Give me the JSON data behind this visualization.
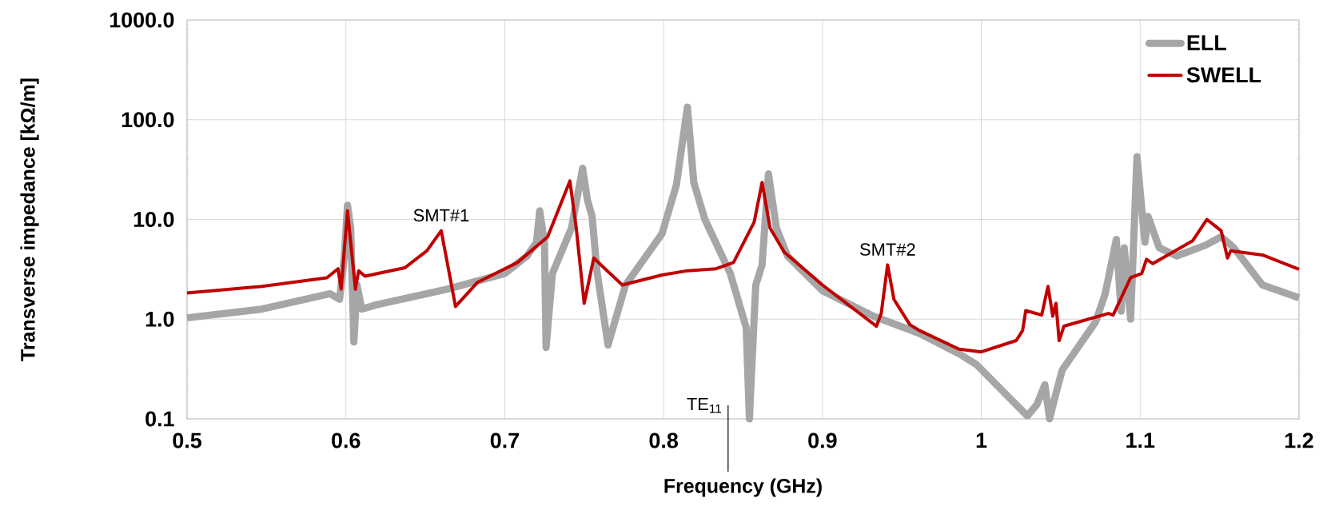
{
  "chart_data": {
    "type": "line",
    "xlabel": "Frequency (GHz)",
    "ylabel": "Transverse impedance [kΩ/m]",
    "log": "y",
    "grid": true,
    "legend": "top right",
    "marker": "none",
    "line_style": "solid",
    "xlim": [
      0.5,
      1.2
    ],
    "xticks": [
      0.5,
      0.6,
      0.7,
      0.8,
      0.9,
      1,
      1.1,
      1.2
    ],
    "ylim": [
      0.1,
      1000
    ],
    "yticks": [
      {
        "value": 0.1,
        "label": "0.1"
      },
      {
        "value": 1,
        "label": "1.0"
      },
      {
        "value": 10,
        "label": "10.0"
      },
      {
        "value": 100,
        "label": "100.0"
      },
      {
        "value": 1000,
        "label": "1000.0"
      }
    ],
    "series": [
      {
        "name": "ELL",
        "color": "#a6a6a6",
        "x": [
          0.5,
          0.547,
          0.59,
          0.596,
          0.599,
          0.601,
          0.603,
          0.605,
          0.607,
          0.61,
          0.619,
          0.664,
          0.7,
          0.714,
          0.72,
          0.722,
          0.725,
          0.726,
          0.73,
          0.742,
          0.749,
          0.752,
          0.755,
          0.758,
          0.765,
          0.776,
          0.799,
          0.808,
          0.815,
          0.819,
          0.826,
          0.842,
          0.852,
          0.854,
          0.858,
          0.862,
          0.866,
          0.871,
          0.878,
          0.9,
          0.932,
          0.961,
          0.986,
          0.997,
          1.029,
          1.035,
          1.04,
          1.043,
          1.047,
          1.051,
          1.072,
          1.078,
          1.085,
          1.088,
          1.09,
          1.094,
          1.098,
          1.103,
          1.105,
          1.112,
          1.123,
          1.141,
          1.151,
          1.159,
          1.177,
          1.2
        ],
        "values": [
          1.03,
          1.26,
          1.8,
          1.58,
          4.2,
          13.9,
          8.2,
          0.59,
          2.2,
          1.26,
          1.39,
          2.0,
          2.87,
          4.3,
          5.9,
          12.2,
          5.9,
          0.52,
          2.87,
          8.2,
          32.6,
          15.8,
          10.7,
          3.06,
          0.55,
          2.2,
          7.2,
          22,
          134,
          23.5,
          10,
          2.87,
          0.82,
          0.1,
          2.2,
          3.5,
          28.6,
          8.2,
          4.3,
          1.93,
          1.07,
          0.72,
          0.45,
          0.35,
          0.107,
          0.139,
          0.22,
          0.1,
          0.18,
          0.31,
          0.94,
          1.8,
          6.3,
          1.2,
          5.2,
          1.0,
          42.5,
          5.9,
          10.7,
          5.2,
          4.3,
          5.5,
          6.7,
          5.2,
          2.2,
          1.64
        ]
      },
      {
        "name": "SWELL",
        "color": "#c00000",
        "x": [
          0.5,
          0.547,
          0.588,
          0.595,
          0.597,
          0.601,
          0.606,
          0.608,
          0.612,
          0.637,
          0.651,
          0.66,
          0.669,
          0.683,
          0.708,
          0.727,
          0.741,
          0.745,
          0.75,
          0.756,
          0.774,
          0.799,
          0.815,
          0.833,
          0.844,
          0.857,
          0.862,
          0.867,
          0.876,
          0.9,
          0.934,
          0.937,
          0.941,
          0.945,
          0.955,
          0.961,
          0.986,
          1.0,
          1.022,
          1.026,
          1.028,
          1.038,
          1.042,
          1.045,
          1.047,
          1.049,
          1.052,
          1.08,
          1.083,
          1.094,
          1.101,
          1.104,
          1.108,
          1.133,
          1.142,
          1.151,
          1.155,
          1.157,
          1.177,
          1.2
        ],
        "values": [
          1.83,
          2.13,
          2.6,
          3.2,
          2.0,
          12.2,
          2.0,
          3.06,
          2.7,
          3.27,
          4.85,
          7.7,
          1.34,
          2.35,
          3.7,
          6.7,
          24.3,
          8.2,
          1.44,
          4.1,
          2.2,
          2.77,
          3.06,
          3.2,
          3.7,
          9.4,
          23.5,
          8.2,
          4.7,
          2.2,
          0.85,
          1.14,
          3.5,
          1.58,
          0.88,
          0.77,
          0.5,
          0.47,
          0.61,
          0.77,
          1.22,
          1.1,
          2.13,
          1.07,
          1.44,
          0.61,
          0.85,
          1.14,
          1.1,
          2.6,
          2.87,
          3.98,
          3.6,
          6.1,
          10,
          7.7,
          4.1,
          4.85,
          4.4,
          3.16
        ]
      }
    ],
    "annotations": [
      {
        "text": "SMT#1",
        "x": 0.66,
        "y": 7.7
      },
      {
        "text": "SMT#2",
        "x": 0.941,
        "y": 3.5
      }
    ],
    "ref_lines": [
      {
        "axis": "x",
        "value": 0.8406,
        "label": "TE$_{11}$",
        "color": "#000000",
        "line_style": "solid"
      }
    ]
  }
}
